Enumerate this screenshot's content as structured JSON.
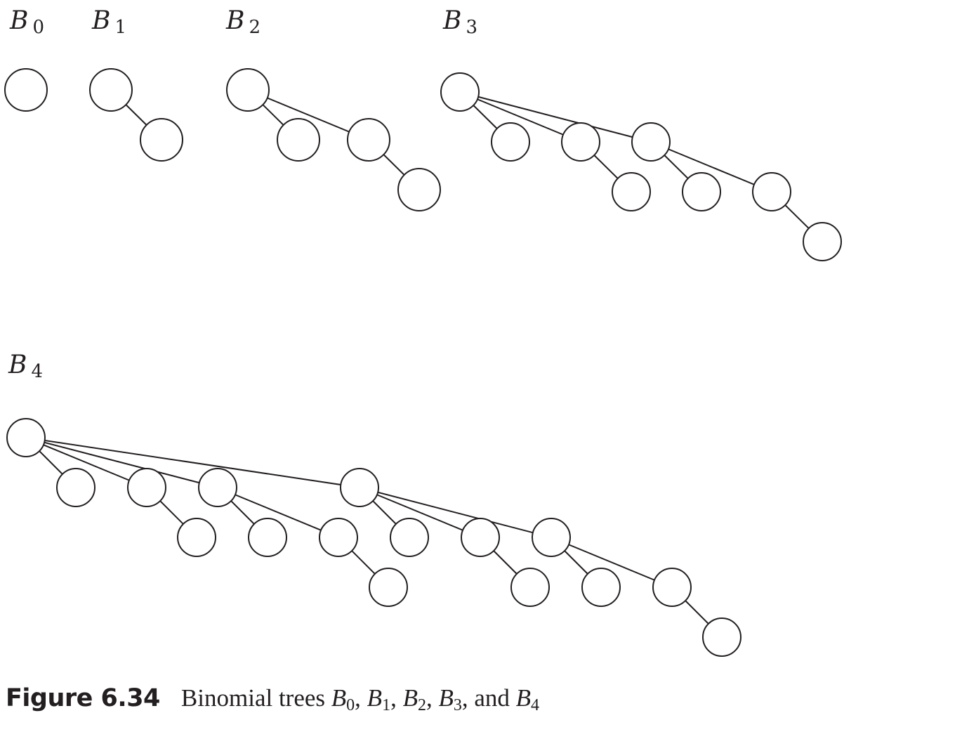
{
  "figure": {
    "label": "Figure 6.34",
    "caption_text": "Binomial trees",
    "caption_trees": [
      {
        "letter": "B",
        "sub": "0",
        "sep": ", "
      },
      {
        "letter": "B",
        "sub": "1",
        "sep": ", "
      },
      {
        "letter": "B",
        "sub": "2",
        "sep": ", "
      },
      {
        "letter": "B",
        "sub": "3",
        "sep": ", and "
      },
      {
        "letter": "B",
        "sub": "4",
        "sep": ""
      }
    ]
  },
  "trees": [
    {
      "letter": "B",
      "order": "0",
      "node_count": 1
    },
    {
      "letter": "B",
      "order": "1",
      "node_count": 2
    },
    {
      "letter": "B",
      "order": "2",
      "node_count": 4
    },
    {
      "letter": "B",
      "order": "3",
      "node_count": 8
    },
    {
      "letter": "B",
      "order": "4",
      "node_count": 16
    }
  ],
  "colors": {
    "stroke": "#231f20",
    "node_fill": "#ffffff",
    "background": "#ffffff"
  }
}
